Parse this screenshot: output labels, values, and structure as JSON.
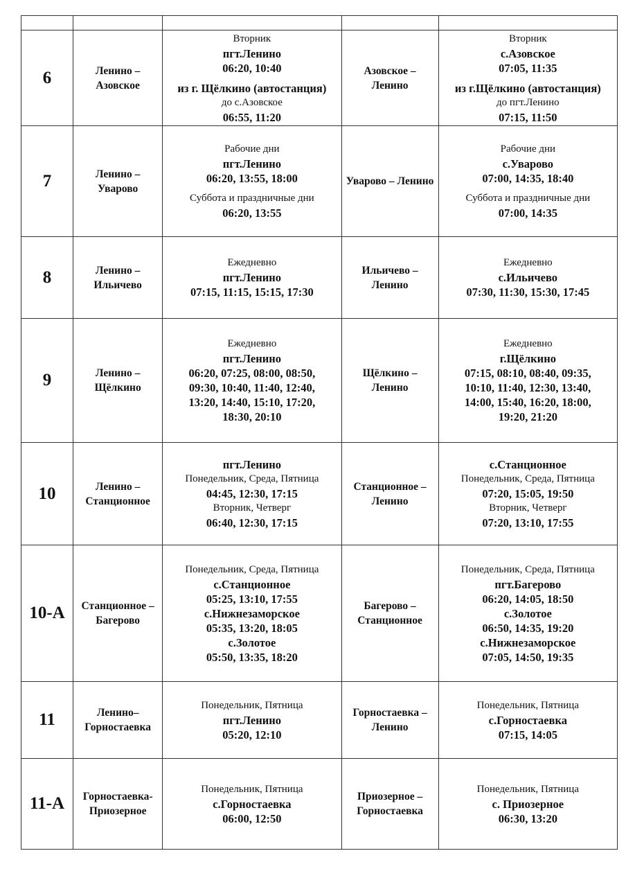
{
  "rows": [
    {
      "num": "6",
      "route": "Ленино – Азовское",
      "back_route": "Азовское – Ленино",
      "there": [
        [
          {
            "t": "Вторник"
          },
          {
            "t": "пгт.Ленино",
            "b": true
          },
          {
            "t": "06:20, 10:40",
            "b": true
          }
        ],
        [
          {
            "t": "из г. Щёлкино (автостанция)",
            "b": true
          },
          {
            "t": "до с.Азовское"
          },
          {
            "t": "06:55, 11:20",
            "b": true
          }
        ]
      ],
      "back": [
        [
          {
            "t": "Вторник"
          },
          {
            "t": "с.Азовское",
            "b": true
          },
          {
            "t": "07:05, 11:35",
            "b": true
          }
        ],
        [
          {
            "t": "из г.Щёлкино (автостанция)",
            "b": true
          },
          {
            "t": "до пгт.Ленино"
          },
          {
            "t": "07:15, 11:50",
            "b": true
          }
        ]
      ]
    },
    {
      "num": "7",
      "route": "Ленино – Уварово",
      "back_route": "Уварово – Ленино",
      "there": [
        [
          {
            "t": "Рабочие дни"
          },
          {
            "t": "пгт.Ленино",
            "b": true
          },
          {
            "t": "06:20, 13:55, 18:00",
            "b": true
          }
        ],
        [
          {
            "t": "Суббота и праздничные дни"
          },
          {
            "t": "06:20, 13:55",
            "b": true
          }
        ]
      ],
      "back": [
        [
          {
            "t": "Рабочие дни"
          },
          {
            "t": "с.Уварово",
            "b": true
          },
          {
            "t": "07:00, 14:35, 18:40",
            "b": true
          }
        ],
        [
          {
            "t": "Суббота и праздничные дни"
          },
          {
            "t": "07:00, 14:35",
            "b": true
          }
        ]
      ]
    },
    {
      "num": "8",
      "route": "Ленино – Ильичево",
      "back_route": "Ильичево – Ленино",
      "there": [
        [
          {
            "t": "Ежедневно"
          },
          {
            "t": "пгт.Ленино",
            "b": true
          },
          {
            "t": "07:15, 11:15, 15:15, 17:30",
            "b": true
          }
        ]
      ],
      "back": [
        [
          {
            "t": "Ежедневно"
          },
          {
            "t": "с.Ильичево",
            "b": true
          },
          {
            "t": "07:30, 11:30, 15:30, 17:45",
            "b": true
          }
        ]
      ]
    },
    {
      "num": "9",
      "route": "Ленино – Щёлкино",
      "back_route": "Щёлкино – Ленино",
      "there": [
        [
          {
            "t": "Ежедневно"
          },
          {
            "t": "пгт.Ленино",
            "b": true
          },
          {
            "t": "06:20, 07:25, 08:00, 08:50,",
            "b": true
          },
          {
            "t": "09:30, 10:40, 11:40, 12:40,",
            "b": true
          },
          {
            "t": "13:20, 14:40, 15:10, 17:20,",
            "b": true
          },
          {
            "t": "18:30, 20:10",
            "b": true
          }
        ]
      ],
      "back": [
        [
          {
            "t": "Ежедневно"
          },
          {
            "t": "г.Щёлкино",
            "b": true
          },
          {
            "t": "07:15, 08:10, 08:40, 09:35,",
            "b": true
          },
          {
            "t": "10:10, 11:40, 12:30, 13:40,",
            "b": true
          },
          {
            "t": "14:00, 15:40, 16:20, 18:00,",
            "b": true
          },
          {
            "t": "19:20, 21:20",
            "b": true
          }
        ]
      ]
    },
    {
      "num": "10",
      "route": "Ленино – Станционное",
      "back_route": "Станционное – Ленино",
      "there": [
        [
          {
            "t": "пгт.Ленино",
            "b": true
          },
          {
            "t": "Понедельник, Среда, Пятница"
          },
          {
            "t": "04:45, 12:30, 17:15",
            "b": true
          },
          {
            "t": "Вторник, Четверг"
          },
          {
            "t": "06:40, 12:30, 17:15",
            "b": true
          }
        ]
      ],
      "back": [
        [
          {
            "t": "с.Станционное",
            "b": true
          },
          {
            "t": "Понедельник, Среда, Пятница"
          },
          {
            "t": "07:20, 15:05, 19:50",
            "b": true
          },
          {
            "t": "Вторник, Четверг"
          },
          {
            "t": "07:20, 13:10, 17:55",
            "b": true
          }
        ]
      ]
    },
    {
      "num": "10-А",
      "route": "Станционное – Багерово",
      "back_route": "Багерово – Станционное",
      "there": [
        [
          {
            "t": "Понедельник, Среда, Пятница"
          },
          {
            "t": "с.Станционное",
            "b": true
          },
          {
            "t": "05:25, 13:10, 17:55",
            "b": true
          },
          {
            "t": "с.Нижнезаморское",
            "b": true
          },
          {
            "t": "05:35, 13:20, 18:05",
            "b": true
          },
          {
            "t": "с.Золотое",
            "b": true
          },
          {
            "t": "05:50, 13:35, 18:20",
            "b": true
          }
        ]
      ],
      "back": [
        [
          {
            "t": "Понедельник, Среда, Пятница"
          },
          {
            "t": "пгт.Багерово",
            "b": true
          },
          {
            "t": "06:20, 14:05, 18:50",
            "b": true
          },
          {
            "t": "с.Золотое",
            "b": true
          },
          {
            "t": "06:50, 14:35, 19:20",
            "b": true
          },
          {
            "t": "с.Нижнезаморское",
            "b": true
          },
          {
            "t": "07:05, 14:50, 19:35",
            "b": true
          }
        ]
      ]
    },
    {
      "num": "11",
      "route": "Ленино– Горностаевка",
      "back_route": "Горностаевка – Ленино",
      "there": [
        [
          {
            "t": "Понедельник, Пятница"
          },
          {
            "t": "пгт.Ленино",
            "b": true
          },
          {
            "t": "05:20, 12:10",
            "b": true
          }
        ]
      ],
      "back": [
        [
          {
            "t": "Понедельник, Пятница"
          },
          {
            "t": "с.Горностаевка",
            "b": true
          },
          {
            "t": "07:15, 14:05",
            "b": true
          }
        ]
      ]
    },
    {
      "num": "11-А",
      "route": "Горностаевка- Приозерное",
      "back_route": "Приозерное – Горностаевка",
      "there": [
        [
          {
            "t": "Понедельник, Пятница"
          },
          {
            "t": "с.Горностаевка",
            "b": true
          },
          {
            "t": "06:00, 12:50",
            "b": true
          }
        ]
      ],
      "back": [
        [
          {
            "t": "Понедельник, Пятница"
          },
          {
            "t": "с. Приозерное",
            "b": true
          },
          {
            "t": "06:30, 13:20",
            "b": true
          }
        ]
      ]
    }
  ]
}
